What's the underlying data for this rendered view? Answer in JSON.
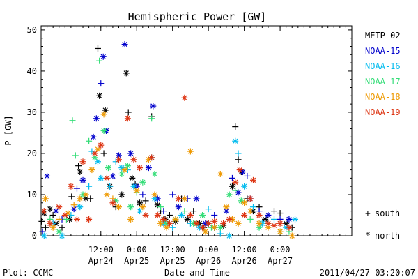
{
  "chart_data": {
    "type": "scatter",
    "title": "Hemispheric Power [GW]",
    "xlabel": "Date and Time",
    "ylabel": "P [GW]",
    "xlim": [
      -8,
      96
    ],
    "ylim": [
      0,
      51
    ],
    "y_ticks": [
      0,
      10,
      20,
      30,
      40,
      50
    ],
    "x_ticks": [
      {
        "t": 12,
        "line1": "12:00",
        "line2": "Apr24"
      },
      {
        "t": 24,
        "line1": "0:00",
        "line2": "Apr25"
      },
      {
        "t": 36,
        "line1": "12:00",
        "line2": "Apr25"
      },
      {
        "t": 48,
        "line1": "0:00",
        "line2": "Apr26"
      },
      {
        "t": 60,
        "line1": "12:00",
        "line2": "Apr26"
      },
      {
        "t": 72,
        "line1": "0:00",
        "line2": "Apr27"
      }
    ],
    "x_minor_step": 2,
    "grid": false,
    "legend_position": "right",
    "marker_legend": [
      {
        "marker": "+",
        "label": "south"
      },
      {
        "marker": "*",
        "label": "north"
      }
    ],
    "series": [
      {
        "name": "METP-02",
        "color": "#000000",
        "points": [
          [
            -7.8,
            3.5,
            "+"
          ],
          [
            -7,
            5.5,
            "*"
          ],
          [
            -6.5,
            2,
            "+"
          ],
          [
            -5,
            6.5,
            "*"
          ],
          [
            -4,
            5,
            "+"
          ],
          [
            -3,
            3,
            "*"
          ],
          [
            -1,
            2,
            "+"
          ],
          [
            1.5,
            4,
            "*"
          ],
          [
            2.2,
            9.5,
            "+"
          ],
          [
            4.5,
            17,
            "+"
          ],
          [
            5,
            15.5,
            "*"
          ],
          [
            7,
            9,
            "*"
          ],
          [
            8.5,
            9,
            "+"
          ],
          [
            11,
            45.5,
            "+"
          ],
          [
            11.5,
            34,
            "*"
          ],
          [
            13,
            20,
            "+"
          ],
          [
            13.5,
            30.5,
            "*"
          ],
          [
            15,
            12,
            "*"
          ],
          [
            17,
            7,
            "+"
          ],
          [
            19,
            10,
            "*"
          ],
          [
            20.5,
            39.5,
            "*"
          ],
          [
            21.2,
            30,
            "+"
          ],
          [
            22.5,
            14,
            "*"
          ],
          [
            23.5,
            12.5,
            "+"
          ],
          [
            25,
            8,
            "*"
          ],
          [
            27,
            8.5,
            "+"
          ],
          [
            29,
            29,
            "+"
          ],
          [
            31,
            7.5,
            "*"
          ],
          [
            32,
            6,
            "+"
          ],
          [
            33.5,
            4,
            "*"
          ],
          [
            35,
            5,
            "+"
          ],
          [
            37,
            3.5,
            "*"
          ],
          [
            39,
            9,
            "+"
          ],
          [
            41,
            4,
            "*"
          ],
          [
            43,
            6,
            "+"
          ],
          [
            45,
            3,
            "*"
          ],
          [
            46.5,
            2,
            "+"
          ],
          [
            48,
            3,
            "*"
          ],
          [
            50,
            2,
            "+"
          ],
          [
            53,
            2.5,
            "*"
          ],
          [
            56,
            12,
            "*"
          ],
          [
            57,
            26.5,
            "+"
          ],
          [
            58,
            18.5,
            "+"
          ],
          [
            59,
            15.5,
            "*"
          ],
          [
            61,
            9,
            "+"
          ],
          [
            63,
            6,
            "*"
          ],
          [
            65,
            7,
            "+"
          ],
          [
            67,
            4,
            "*"
          ],
          [
            70,
            6,
            "+"
          ],
          [
            72,
            5.5,
            "+"
          ],
          [
            74,
            3,
            "*"
          ],
          [
            76,
            2,
            "+"
          ]
        ]
      },
      {
        "name": "NOAA-15",
        "color": "#0000cc",
        "points": [
          [
            -7.5,
            1,
            "+"
          ],
          [
            -6,
            14.5,
            "*"
          ],
          [
            -3,
            6,
            "*"
          ],
          [
            -1,
            4,
            "+"
          ],
          [
            3,
            6.5,
            "*"
          ],
          [
            4,
            11.5,
            "+"
          ],
          [
            6,
            13.5,
            "*"
          ],
          [
            9.5,
            24,
            "*"
          ],
          [
            10.5,
            28.5,
            "*"
          ],
          [
            12,
            37,
            "+"
          ],
          [
            12.8,
            43.5,
            "*"
          ],
          [
            13.8,
            25.5,
            "*"
          ],
          [
            16,
            14.5,
            "*"
          ],
          [
            18,
            19.5,
            "*"
          ],
          [
            20,
            46.5,
            "*"
          ],
          [
            22,
            20,
            "*"
          ],
          [
            24,
            12,
            "*"
          ],
          [
            26,
            10,
            "+"
          ],
          [
            28,
            16.5,
            "*"
          ],
          [
            29.5,
            31.5,
            "*"
          ],
          [
            31,
            9,
            "*"
          ],
          [
            33,
            6,
            "+"
          ],
          [
            36,
            10,
            "+"
          ],
          [
            38,
            7,
            "*"
          ],
          [
            41,
            9,
            "+"
          ],
          [
            44,
            9,
            "*"
          ],
          [
            47,
            3,
            "*"
          ],
          [
            50,
            5,
            "+"
          ],
          [
            54,
            6,
            "*"
          ],
          [
            56,
            14,
            "+"
          ],
          [
            58,
            10.5,
            "*"
          ],
          [
            59.5,
            15.5,
            "*"
          ],
          [
            61,
            14.5,
            "+"
          ],
          [
            62,
            9,
            "*"
          ],
          [
            65,
            6,
            "+"
          ],
          [
            68,
            5,
            "*"
          ],
          [
            72,
            4,
            "+"
          ],
          [
            75,
            4,
            "*"
          ]
        ]
      },
      {
        "name": "NOAA-16",
        "color": "#00bbee",
        "points": [
          [
            -7,
            0,
            "*"
          ],
          [
            -4,
            3,
            "+"
          ],
          [
            -1,
            0,
            "*"
          ],
          [
            2,
            5,
            "+"
          ],
          [
            5,
            7,
            "*"
          ],
          [
            8,
            12,
            "+"
          ],
          [
            9,
            20.5,
            "+"
          ],
          [
            11,
            18,
            "*"
          ],
          [
            12,
            14,
            "*"
          ],
          [
            15,
            12,
            "+"
          ],
          [
            17,
            18,
            "+"
          ],
          [
            19,
            16.5,
            "*"
          ],
          [
            21,
            16,
            "+"
          ],
          [
            23,
            12,
            "*"
          ],
          [
            25,
            6,
            "*"
          ],
          [
            27,
            5,
            "+"
          ],
          [
            29,
            19,
            "*"
          ],
          [
            30,
            9,
            "*"
          ],
          [
            33,
            3,
            "*"
          ],
          [
            36,
            2,
            "+"
          ],
          [
            39,
            5,
            "*"
          ],
          [
            42,
            3,
            "+"
          ],
          [
            45,
            2,
            "*"
          ],
          [
            48,
            6.5,
            "+"
          ],
          [
            50,
            2,
            "*"
          ],
          [
            52,
            0.5,
            "+"
          ],
          [
            55,
            0,
            "*"
          ],
          [
            57,
            23,
            "*"
          ],
          [
            58,
            20,
            "+"
          ],
          [
            60,
            12,
            "*"
          ],
          [
            63,
            7,
            "+"
          ],
          [
            66,
            3,
            "*"
          ],
          [
            70,
            4,
            "+"
          ],
          [
            74,
            2,
            "*"
          ],
          [
            77,
            4,
            "*"
          ]
        ]
      },
      {
        "name": "NOAA-17",
        "color": "#33dd77",
        "points": [
          [
            -5,
            4,
            "+"
          ],
          [
            -2,
            1,
            "*"
          ],
          [
            0.5,
            4,
            "+"
          ],
          [
            2.5,
            28,
            "+"
          ],
          [
            3.5,
            19.5,
            "+"
          ],
          [
            6,
            10,
            "*"
          ],
          [
            8,
            23,
            "+"
          ],
          [
            10,
            19,
            "*"
          ],
          [
            11.5,
            42.5,
            "+"
          ],
          [
            13,
            25.5,
            "*"
          ],
          [
            14.5,
            16.5,
            "*"
          ],
          [
            17,
            8.5,
            "*"
          ],
          [
            19,
            15,
            "*"
          ],
          [
            21,
            17,
            "*"
          ],
          [
            22,
            7,
            "*"
          ],
          [
            24,
            10.5,
            "+"
          ],
          [
            26,
            13,
            "*"
          ],
          [
            29,
            28.5,
            "+"
          ],
          [
            30,
            15,
            "*"
          ],
          [
            32,
            7,
            "+"
          ],
          [
            34,
            3,
            "*"
          ],
          [
            37,
            4,
            "*"
          ],
          [
            40,
            6,
            "+"
          ],
          [
            43,
            3,
            "*"
          ],
          [
            46,
            5,
            "*"
          ],
          [
            49,
            2,
            "+"
          ],
          [
            52,
            2,
            "*"
          ],
          [
            55,
            10,
            "*"
          ],
          [
            57,
            11,
            "+"
          ],
          [
            59,
            8.5,
            "*"
          ],
          [
            62,
            4,
            "+"
          ],
          [
            65,
            2,
            "*"
          ],
          [
            68,
            3,
            "+"
          ],
          [
            72,
            1,
            "*"
          ],
          [
            75,
            1,
            "+"
          ]
        ]
      },
      {
        "name": "NOAA-18",
        "color": "#ee9900",
        "points": [
          [
            -6.5,
            9,
            "*"
          ],
          [
            -4,
            2,
            "*"
          ],
          [
            -2,
            4,
            "+"
          ],
          [
            1,
            5.5,
            "*"
          ],
          [
            3,
            7.5,
            "+"
          ],
          [
            5,
            9,
            "*"
          ],
          [
            7,
            10,
            "*"
          ],
          [
            9,
            16,
            "*"
          ],
          [
            11,
            21,
            "*"
          ],
          [
            13,
            29.5,
            "*"
          ],
          [
            14,
            10,
            "*"
          ],
          [
            16,
            9,
            "+"
          ],
          [
            18,
            7,
            "*"
          ],
          [
            20,
            16,
            "*"
          ],
          [
            22,
            4,
            "*"
          ],
          [
            24,
            11,
            "*"
          ],
          [
            26,
            7,
            "*"
          ],
          [
            28,
            18.5,
            "*"
          ],
          [
            30,
            10,
            "*"
          ],
          [
            32,
            3,
            "*"
          ],
          [
            34,
            2,
            "*"
          ],
          [
            37,
            4,
            "*"
          ],
          [
            40,
            9,
            "*"
          ],
          [
            42,
            20.5,
            "*"
          ],
          [
            44,
            3,
            "*"
          ],
          [
            47,
            1,
            "*"
          ],
          [
            50,
            2,
            "*"
          ],
          [
            52,
            15,
            "*"
          ],
          [
            54,
            7,
            "*"
          ],
          [
            56,
            4,
            "*"
          ],
          [
            58,
            3,
            "*"
          ],
          [
            60,
            8,
            "*"
          ],
          [
            62,
            6,
            "*"
          ],
          [
            65,
            3,
            "*"
          ],
          [
            68,
            2,
            "*"
          ],
          [
            72,
            1,
            "*"
          ],
          [
            76,
            0,
            "*"
          ]
        ]
      },
      {
        "name": "NOAA-19",
        "color": "#dd3311",
        "points": [
          [
            -7,
            6,
            "*"
          ],
          [
            -5,
            3,
            "*"
          ],
          [
            -2,
            7,
            "*"
          ],
          [
            0,
            5,
            "*"
          ],
          [
            2,
            12,
            "*"
          ],
          [
            4,
            4,
            "*"
          ],
          [
            6,
            18,
            "*"
          ],
          [
            8,
            4,
            "*"
          ],
          [
            10,
            20,
            "*"
          ],
          [
            12,
            22,
            "*"
          ],
          [
            14,
            14,
            "*"
          ],
          [
            16,
            8,
            "*"
          ],
          [
            18,
            18.5,
            "*"
          ],
          [
            21,
            28.5,
            "*"
          ],
          [
            23,
            18.5,
            "*"
          ],
          [
            25,
            16.5,
            "*"
          ],
          [
            27,
            5,
            "*"
          ],
          [
            29,
            19,
            "*"
          ],
          [
            31,
            5,
            "*"
          ],
          [
            33,
            4,
            "*"
          ],
          [
            35,
            3,
            "*"
          ],
          [
            38,
            9,
            "*"
          ],
          [
            40,
            33.5,
            "*"
          ],
          [
            42,
            5,
            "*"
          ],
          [
            44,
            3,
            "*"
          ],
          [
            46,
            2,
            "*"
          ],
          [
            48,
            3,
            "*"
          ],
          [
            50,
            3.5,
            "*"
          ],
          [
            53,
            3,
            "*"
          ],
          [
            55,
            4,
            "*"
          ],
          [
            57,
            13,
            "*"
          ],
          [
            58.5,
            16,
            "*"
          ],
          [
            60,
            5,
            "*"
          ],
          [
            62,
            9,
            "*"
          ],
          [
            63,
            13.5,
            "*"
          ],
          [
            65,
            5,
            "*"
          ],
          [
            68,
            3,
            "*"
          ],
          [
            70,
            2.5,
            "*"
          ],
          [
            72,
            3,
            "*"
          ],
          [
            75,
            2,
            "*"
          ]
        ]
      }
    ]
  },
  "footer": {
    "left": "Plot: CCMC",
    "right": "2011/04/27 03:20:07"
  },
  "legend": {
    "south_symbol": "+",
    "south_label": "south",
    "north_symbol": "*",
    "north_label": "north"
  }
}
